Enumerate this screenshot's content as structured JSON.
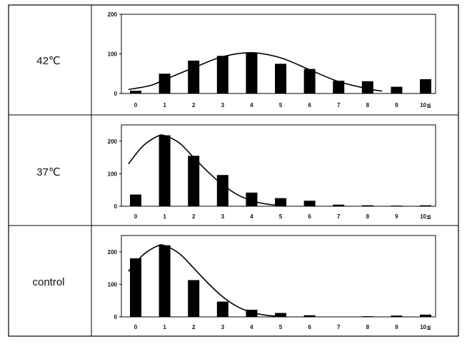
{
  "colors": {
    "bar": "#000000",
    "curve": "#000000",
    "frame": "#000000",
    "background": "#ffffff"
  },
  "panels": [
    {
      "label": "42℃",
      "chart_data": {
        "type": "bar",
        "categories": [
          "0",
          "1",
          "2",
          "3",
          "4",
          "5",
          "6",
          "7",
          "8",
          "9",
          "10≦"
        ],
        "values": [
          7,
          50,
          83,
          95,
          103,
          75,
          62,
          32,
          31,
          17,
          36
        ],
        "ylim": [
          0,
          200
        ],
        "yticks": [
          "0",
          "100",
          "200"
        ],
        "fit_curve": {
          "x": [
            -0.25,
            0.5,
            1,
            2,
            3,
            4,
            5,
            6,
            7,
            8,
            8.5
          ],
          "y": [
            10,
            20,
            35,
            65,
            93,
            103,
            90,
            60,
            30,
            12,
            6
          ]
        },
        "grid": false,
        "legend": "none"
      }
    },
    {
      "label": "37℃",
      "chart_data": {
        "type": "bar",
        "categories": [
          "0",
          "1",
          "2",
          "3",
          "4",
          "5",
          "6",
          "7",
          "8",
          "9",
          "10≦"
        ],
        "values": [
          36,
          218,
          155,
          96,
          42,
          25,
          17,
          5,
          3,
          2,
          3
        ],
        "ylim": [
          0,
          250
        ],
        "yticks": [
          "0",
          "100",
          "200"
        ],
        "fit_curve": {
          "x": [
            -0.25,
            0.25,
            0.75,
            1,
            1.5,
            2,
            2.5,
            3,
            3.5,
            4,
            4.5,
            5
          ],
          "y": [
            130,
            185,
            215,
            217,
            195,
            150,
            105,
            66,
            36,
            17,
            7,
            2
          ]
        },
        "grid": false,
        "legend": "none"
      }
    },
    {
      "label": "control",
      "chart_data": {
        "type": "bar",
        "categories": [
          "0",
          "1",
          "2",
          "3",
          "4",
          "5",
          "6",
          "7",
          "8",
          "9",
          "10≦"
        ],
        "values": [
          180,
          220,
          113,
          47,
          22,
          12,
          5,
          1,
          2,
          4,
          7
        ],
        "ylim": [
          0,
          250
        ],
        "yticks": [
          "0",
          "100",
          "200"
        ],
        "fit_curve": {
          "x": [
            -0.25,
            0.25,
            0.75,
            1,
            1.5,
            2,
            2.5,
            3,
            3.5,
            4,
            4.5,
            5
          ],
          "y": [
            140,
            190,
            218,
            219,
            195,
            150,
            103,
            62,
            32,
            14,
            5,
            1
          ]
        },
        "grid": false,
        "legend": "none"
      }
    }
  ]
}
